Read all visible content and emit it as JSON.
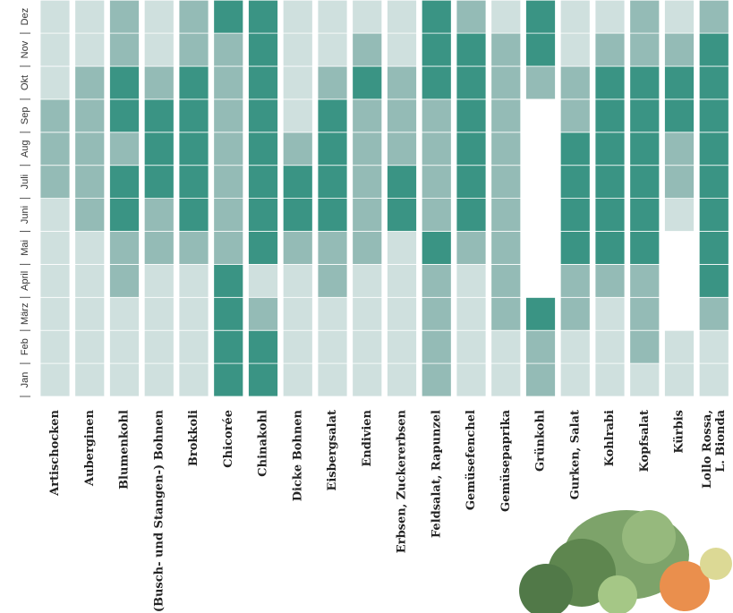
{
  "chart_data": {
    "type": "heatmap",
    "months": [
      "Jan",
      "Feb",
      "März",
      "April",
      "Mai",
      "Juni",
      "Juli",
      "Aug",
      "Sep",
      "Okt",
      "Nov",
      "Dez"
    ],
    "level_colors": [
      "#ffffff",
      "#cfe0de",
      "#94bbb6",
      "#3a9484"
    ],
    "series": [
      {
        "name": "Artischocken",
        "values": [
          1,
          1,
          1,
          1,
          1,
          1,
          2,
          2,
          2,
          1,
          1,
          1
        ]
      },
      {
        "name": "Auberginen",
        "values": [
          1,
          1,
          1,
          1,
          1,
          2,
          2,
          2,
          2,
          2,
          1,
          1
        ]
      },
      {
        "name": "Blumenkohl",
        "values": [
          1,
          1,
          1,
          2,
          2,
          3,
          3,
          2,
          3,
          3,
          2,
          2
        ]
      },
      {
        "name": "(Busch- und Stangen-) Bohnen",
        "values": [
          1,
          1,
          1,
          1,
          2,
          2,
          3,
          3,
          3,
          2,
          1,
          1
        ]
      },
      {
        "name": "Brokkoli",
        "values": [
          1,
          1,
          1,
          1,
          2,
          3,
          3,
          3,
          3,
          3,
          2,
          2
        ]
      },
      {
        "name": "Chicorée",
        "values": [
          3,
          3,
          3,
          3,
          2,
          2,
          2,
          2,
          2,
          2,
          2,
          3
        ]
      },
      {
        "name": "Chinakohl",
        "values": [
          3,
          3,
          2,
          1,
          3,
          3,
          3,
          3,
          3,
          3,
          3,
          3
        ]
      },
      {
        "name": "Dicke Bohnen",
        "values": [
          1,
          1,
          1,
          1,
          2,
          3,
          3,
          2,
          1,
          1,
          1,
          1
        ]
      },
      {
        "name": "Eisbergsalat",
        "values": [
          1,
          1,
          1,
          2,
          2,
          3,
          3,
          3,
          3,
          2,
          1,
          1
        ]
      },
      {
        "name": "Endivien",
        "values": [
          1,
          1,
          1,
          1,
          2,
          2,
          2,
          2,
          2,
          3,
          2,
          1
        ]
      },
      {
        "name": "Erbsen, Zuckererbsen",
        "values": [
          1,
          1,
          1,
          1,
          1,
          3,
          3,
          2,
          2,
          2,
          1,
          1
        ]
      },
      {
        "name": "Feldsalat, Rapunzel",
        "values": [
          2,
          2,
          2,
          2,
          3,
          2,
          2,
          2,
          2,
          3,
          3,
          3
        ]
      },
      {
        "name": "Gemüsefenchel",
        "values": [
          1,
          1,
          1,
          1,
          2,
          3,
          3,
          3,
          3,
          3,
          3,
          2
        ]
      },
      {
        "name": "Gemüsepaprika",
        "values": [
          1,
          1,
          2,
          2,
          2,
          2,
          2,
          2,
          2,
          2,
          2,
          1
        ]
      },
      {
        "name": "Grünkohl",
        "values": [
          2,
          2,
          3,
          0,
          0,
          0,
          0,
          0,
          0,
          2,
          3,
          3
        ]
      },
      {
        "name": "Gurken, Salat",
        "values": [
          1,
          1,
          2,
          2,
          3,
          3,
          3,
          3,
          2,
          2,
          1,
          1
        ]
      },
      {
        "name": "Kohlrabi",
        "values": [
          1,
          1,
          1,
          2,
          3,
          3,
          3,
          3,
          3,
          3,
          2,
          1
        ]
      },
      {
        "name": "Kopfsalat",
        "values": [
          1,
          2,
          2,
          2,
          3,
          3,
          3,
          3,
          3,
          3,
          2,
          2
        ]
      },
      {
        "name": "Kürbis",
        "values": [
          1,
          1,
          0,
          0,
          0,
          1,
          2,
          2,
          3,
          3,
          2,
          1
        ]
      },
      {
        "name": [
          "Lollo Rossa,",
          "L. Bionda"
        ],
        "values": [
          1,
          1,
          2,
          3,
          3,
          3,
          3,
          3,
          3,
          3,
          3,
          2
        ]
      }
    ]
  }
}
